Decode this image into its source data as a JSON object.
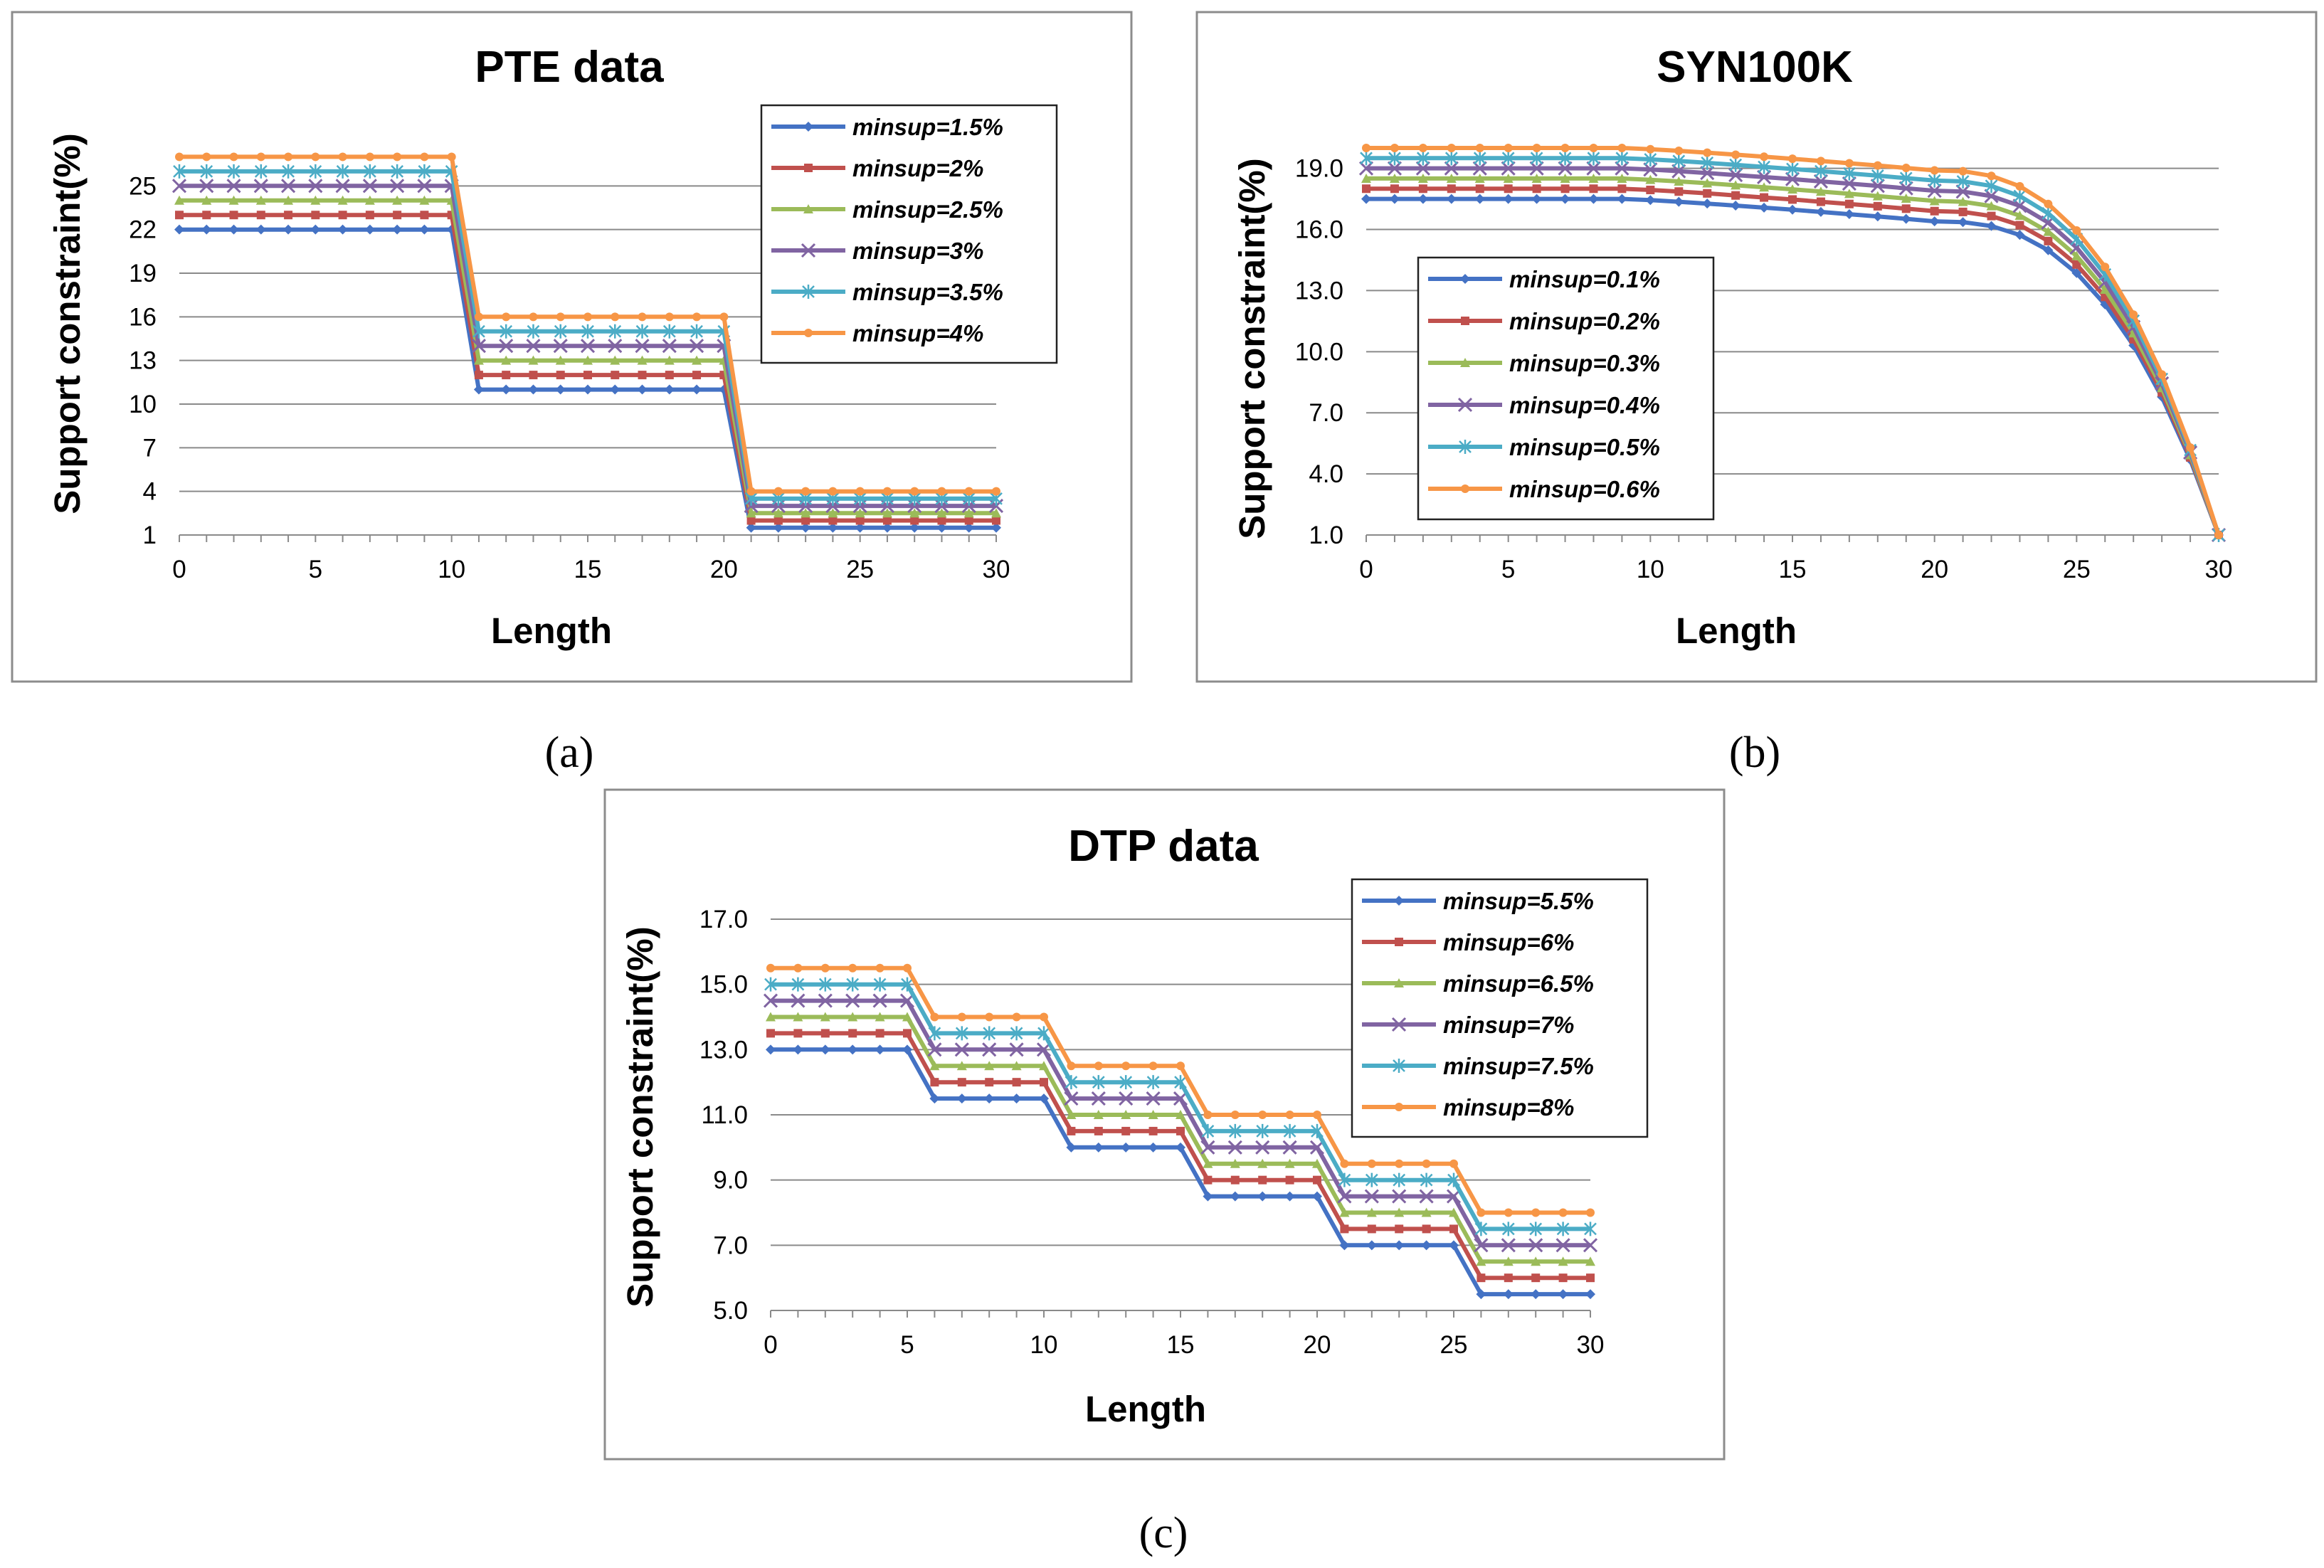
{
  "chart_data": [
    {
      "id": "a",
      "type": "line",
      "title": "PTE data",
      "xlabel": "Length",
      "ylabel": "Support constraint(%)",
      "panel_label": "(a)",
      "xlim": [
        0,
        30
      ],
      "ylim": [
        1,
        28
      ],
      "xticks": [
        "0",
        "5",
        "10",
        "15",
        "20",
        "25",
        "30"
      ],
      "yticks": [
        "1",
        "4",
        "7",
        "10",
        "13",
        "16",
        "19",
        "22",
        "25"
      ],
      "yticks_values": [
        1,
        4,
        7,
        10,
        13,
        16,
        19,
        22,
        25
      ],
      "grid": true,
      "legend_position": "top-right",
      "series": [
        {
          "name": "minsup=1.5%",
          "color": "#4472C4",
          "marker": "diamond",
          "steps": [
            22,
            11,
            1.5
          ]
        },
        {
          "name": "minsup=2%",
          "color": "#C0504D",
          "marker": "square",
          "steps": [
            23,
            12,
            2
          ]
        },
        {
          "name": "minsup=2.5%",
          "color": "#9BBB59",
          "marker": "triangle",
          "steps": [
            24,
            13,
            2.5
          ]
        },
        {
          "name": "minsup=3%",
          "color": "#8064A2",
          "marker": "x",
          "steps": [
            25,
            14,
            3
          ]
        },
        {
          "name": "minsup=3.5%",
          "color": "#4BACC6",
          "marker": "star",
          "steps": [
            26,
            15,
            3.5
          ]
        },
        {
          "name": "minsup=4%",
          "color": "#F79646",
          "marker": "circle",
          "steps": [
            27,
            16,
            4
          ]
        }
      ]
    },
    {
      "id": "b",
      "type": "line",
      "title": "SYN100K",
      "xlabel": "Length",
      "ylabel": "Support constraint(%)",
      "panel_label": "(b)",
      "xlim": [
        0,
        30
      ],
      "ylim": [
        1,
        20
      ],
      "xticks": [
        "0",
        "5",
        "10",
        "15",
        "20",
        "25",
        "30"
      ],
      "yticks": [
        "1.0",
        "4.0",
        "7.0",
        "10.0",
        "13.0",
        "16.0",
        "19.0"
      ],
      "yticks_values": [
        1,
        4,
        7,
        10,
        13,
        16,
        19
      ],
      "grid": true,
      "legend_position": "center-left",
      "series": [
        {
          "name": "minsup=0.1%",
          "color": "#4472C4",
          "marker": "diamond",
          "start": 17.5
        },
        {
          "name": "minsup=0.2%",
          "color": "#C0504D",
          "marker": "square",
          "start": 18
        },
        {
          "name": "minsup=0.3%",
          "color": "#9BBB59",
          "marker": "triangle",
          "start": 18.5
        },
        {
          "name": "minsup=0.4%",
          "color": "#8064A2",
          "marker": "x",
          "start": 19
        },
        {
          "name": "minsup=0.5%",
          "color": "#4BACC6",
          "marker": "star",
          "start": 19.5
        },
        {
          "name": "minsup=0.6%",
          "color": "#F79646",
          "marker": "circle",
          "start": 20
        }
      ]
    },
    {
      "id": "c",
      "type": "line",
      "title": "DTP data",
      "xlabel": "Length",
      "ylabel": "Support constraint(%)",
      "panel_label": "(c)",
      "xlim": [
        0,
        30
      ],
      "ylim": [
        5,
        17
      ],
      "xticks": [
        "0",
        "5",
        "10",
        "15",
        "20",
        "25",
        "30"
      ],
      "yticks": [
        "5.0",
        "7.0",
        "9.0",
        "11.0",
        "13.0",
        "15.0",
        "17.0"
      ],
      "yticks_values": [
        5,
        7,
        9,
        11,
        13,
        15,
        17
      ],
      "grid": true,
      "legend_position": "top-right",
      "series": [
        {
          "name": "minsup=5.5%",
          "color": "#4472C4",
          "marker": "diamond",
          "steps": [
            13,
            11.5,
            10,
            8.5,
            7,
            5.5
          ]
        },
        {
          "name": "minsup=6%",
          "color": "#C0504D",
          "marker": "square",
          "steps": [
            13.5,
            12,
            10.5,
            9,
            7.5,
            6
          ]
        },
        {
          "name": "minsup=6.5%",
          "color": "#9BBB59",
          "marker": "triangle",
          "steps": [
            14,
            12.5,
            11,
            9.5,
            8,
            6.5
          ]
        },
        {
          "name": "minsup=7%",
          "color": "#8064A2",
          "marker": "x",
          "steps": [
            14.5,
            13,
            11.5,
            10,
            8.5,
            7
          ]
        },
        {
          "name": "minsup=7.5%",
          "color": "#4BACC6",
          "marker": "star",
          "steps": [
            15,
            13.5,
            12,
            10.5,
            9,
            7.5
          ]
        },
        {
          "name": "minsup=8%",
          "color": "#F79646",
          "marker": "circle",
          "steps": [
            15.5,
            14,
            12.5,
            11,
            9.5,
            8
          ]
        }
      ]
    }
  ]
}
